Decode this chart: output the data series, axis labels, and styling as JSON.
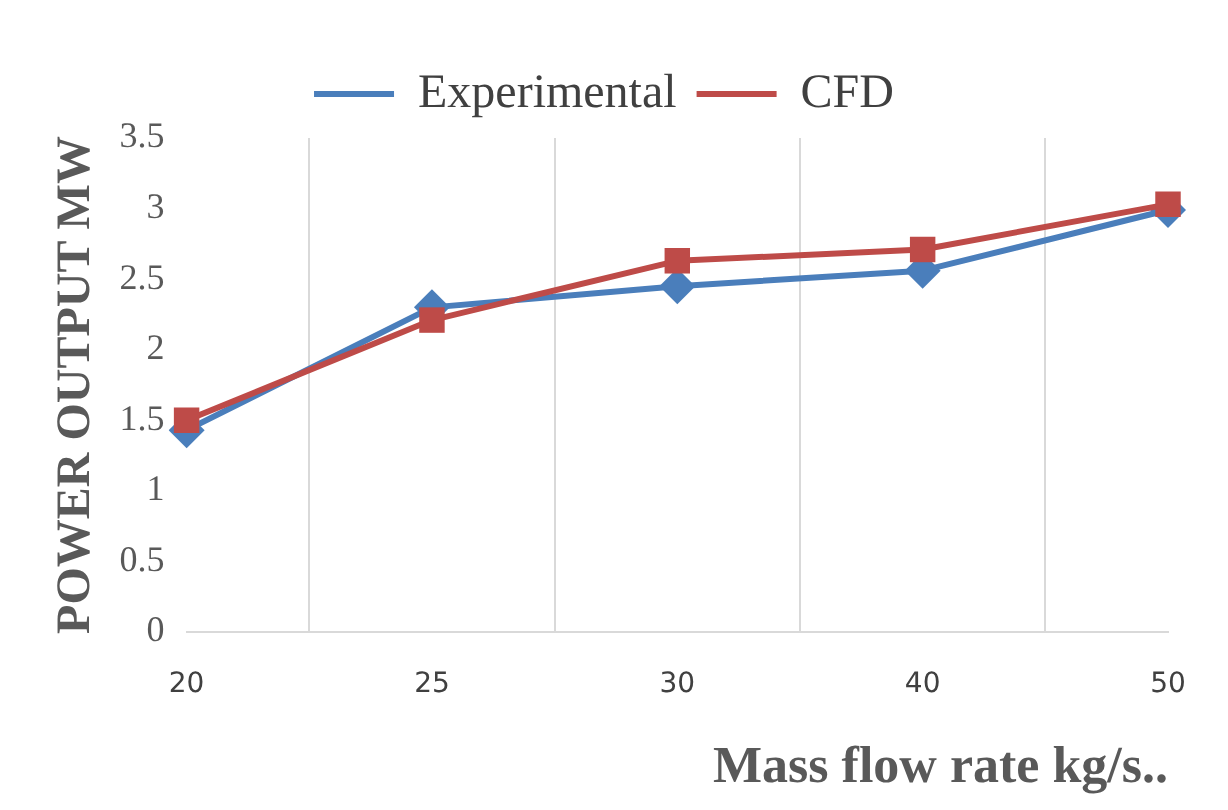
{
  "chart_data": {
    "type": "line",
    "xlabel": "Mass flow rate kg/s..",
    "ylabel": "POWER OUTPUT MW",
    "categories": [
      "20",
      "25",
      "30",
      "40",
      "50"
    ],
    "series": [
      {
        "name": "Experimental",
        "color": "#4a7ebb",
        "marker": "diamond",
        "values": [
          1.43,
          2.3,
          2.45,
          2.56,
          2.99
        ]
      },
      {
        "name": "CFD",
        "color": "#be4b48",
        "marker": "square",
        "values": [
          1.5,
          2.21,
          2.63,
          2.71,
          3.03
        ]
      }
    ],
    "ylim": [
      0,
      3.5
    ],
    "yticks": [
      0,
      0.5,
      1,
      1.5,
      2,
      2.5,
      3,
      3.5
    ],
    "grid": "x",
    "legend": "top"
  }
}
